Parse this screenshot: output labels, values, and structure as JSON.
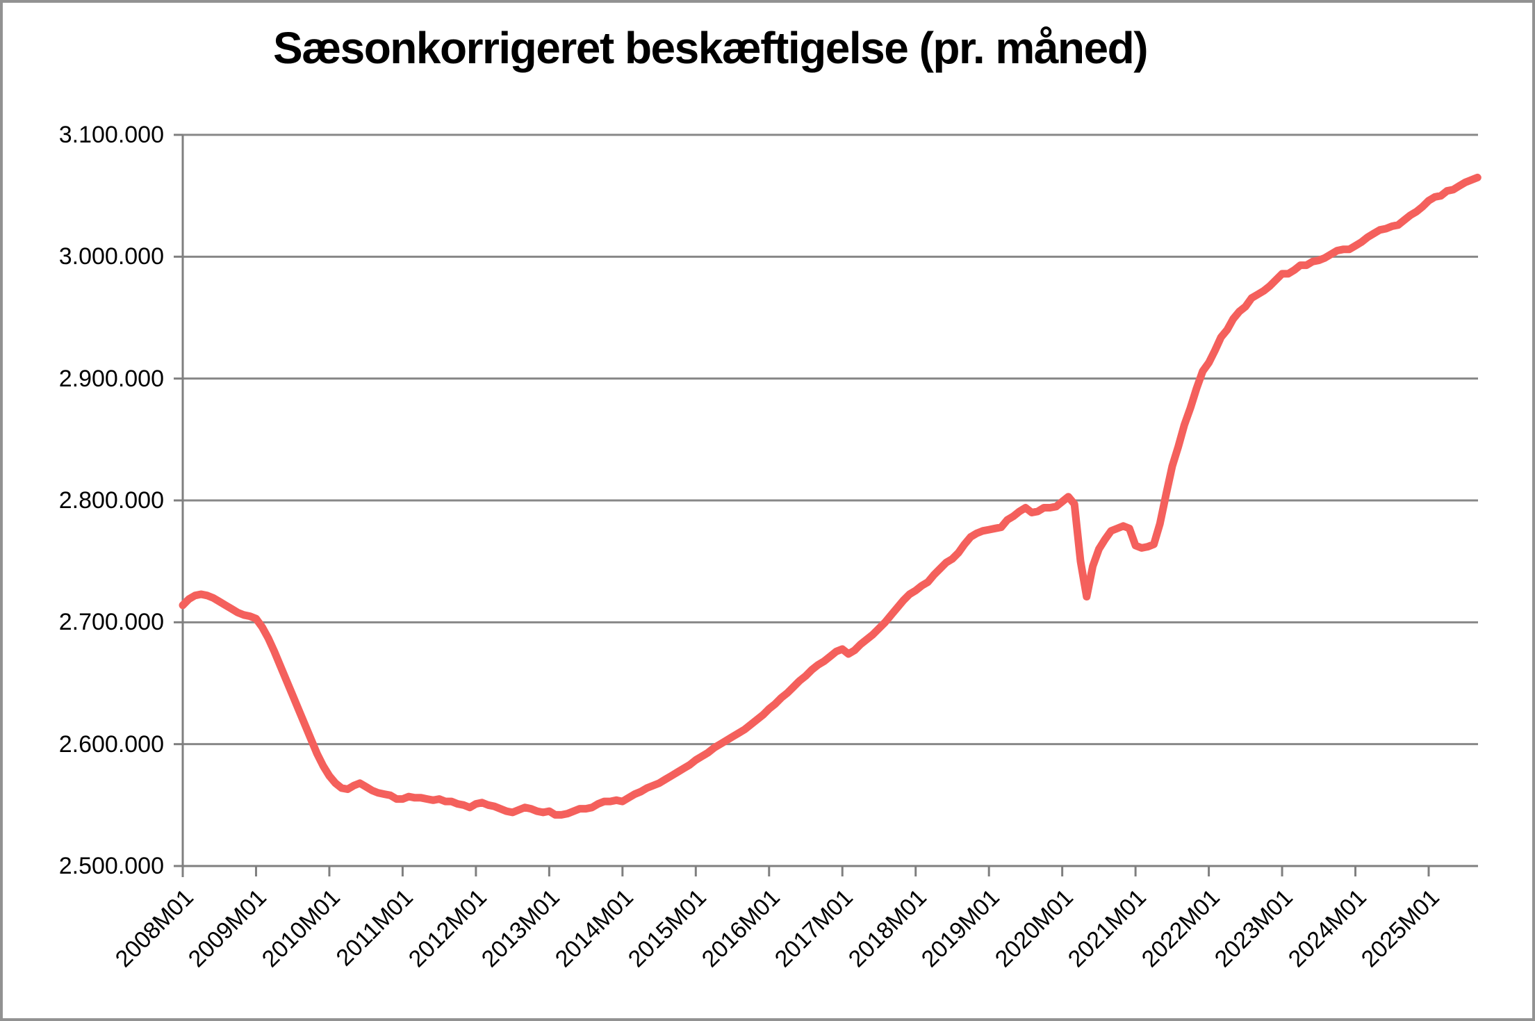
{
  "title": "Sæsonkorrigeret beskæftigelse (pr. måned)",
  "chart_data": {
    "type": "line",
    "title": "Sæsonkorrigeret beskæftigelse (pr. måned)",
    "xlabel": "",
    "ylabel": "",
    "x_start": "2008M01",
    "x_end": "2025M09",
    "x_frequency": "monthly",
    "x_tick_labels": [
      "2008M01",
      "2009M01",
      "2010M01",
      "2011M01",
      "2012M01",
      "2013M01",
      "2014M01",
      "2015M01",
      "2016M01",
      "2017M01",
      "2018M01",
      "2019M01",
      "2020M01",
      "2021M01",
      "2022M01",
      "2023M01",
      "2024M01",
      "2025M01"
    ],
    "y_tick_labels": [
      "3.100.000",
      "3.000.000",
      "2.900.000",
      "2.800.000",
      "2.700.000",
      "2.600.000",
      "2.500.000"
    ],
    "ylim": [
      2500000,
      3100000
    ],
    "y_gridline_step": 100000,
    "grid": true,
    "legend_position": "none",
    "colors": {
      "line": "#f4605c",
      "gridline": "#878787",
      "axis": "#7f7f7f",
      "frame": "#929292",
      "text": "#000000",
      "background": "#ffffff"
    },
    "series": [
      {
        "name": "Sæsonkorrigeret beskæftigelse",
        "start": "2008M01",
        "values": [
          2714000,
          2719000,
          2722000,
          2723000,
          2722000,
          2720000,
          2717000,
          2714000,
          2711000,
          2708000,
          2706000,
          2705000,
          2703000,
          2696000,
          2687000,
          2676000,
          2664000,
          2652000,
          2640000,
          2628000,
          2616000,
          2604000,
          2592000,
          2582000,
          2574000,
          2568000,
          2564000,
          2563000,
          2566000,
          2568000,
          2565000,
          2562000,
          2560000,
          2559000,
          2558000,
          2555000,
          2555000,
          2557000,
          2556000,
          2556000,
          2555000,
          2554000,
          2555000,
          2553000,
          2553000,
          2551000,
          2550000,
          2548000,
          2551000,
          2552000,
          2550000,
          2549000,
          2547000,
          2545000,
          2544000,
          2546000,
          2548000,
          2547000,
          2545000,
          2544000,
          2545000,
          2542000,
          2542000,
          2543000,
          2545000,
          2547000,
          2547000,
          2548000,
          2551000,
          2553000,
          2553000,
          2554000,
          2553000,
          2556000,
          2559000,
          2561000,
          2564000,
          2566000,
          2568000,
          2571000,
          2574000,
          2577000,
          2580000,
          2583000,
          2587000,
          2590000,
          2593000,
          2597000,
          2600000,
          2603000,
          2606000,
          2609000,
          2612000,
          2616000,
          2620000,
          2624000,
          2629000,
          2633000,
          2638000,
          2642000,
          2647000,
          2652000,
          2656000,
          2661000,
          2665000,
          2668000,
          2672000,
          2676000,
          2678000,
          2674000,
          2677000,
          2682000,
          2686000,
          2690000,
          2695000,
          2700000,
          2706000,
          2712000,
          2718000,
          2723000,
          2726000,
          2730000,
          2733000,
          2739000,
          2744000,
          2749000,
          2752000,
          2757000,
          2764000,
          2770000,
          2773000,
          2775000,
          2776000,
          2777000,
          2778000,
          2784000,
          2787000,
          2791000,
          2794000,
          2790000,
          2791000,
          2794000,
          2794000,
          2795000,
          2799000,
          2803000,
          2797000,
          2750000,
          2721000,
          2746000,
          2760000,
          2768000,
          2775000,
          2777000,
          2779000,
          2777000,
          2763000,
          2761000,
          2762000,
          2764000,
          2781000,
          2805000,
          2828000,
          2844000,
          2862000,
          2876000,
          2892000,
          2906000,
          2913000,
          2923000,
          2934000,
          2940000,
          2949000,
          2955000,
          2959000,
          2966000,
          2969000,
          2972000,
          2976000,
          2981000,
          2986000,
          2986000,
          2989000,
          2993000,
          2993000,
          2996000,
          2997000,
          2999000,
          3002000,
          3005000,
          3006000,
          3006000,
          3009000,
          3012000,
          3016000,
          3019000,
          3022000,
          3023000,
          3025000,
          3026000,
          3030000,
          3034000,
          3037000,
          3041000,
          3046000,
          3049000,
          3050000,
          3054000,
          3055000,
          3058000,
          3061000,
          3063000,
          3065000
        ]
      }
    ]
  }
}
